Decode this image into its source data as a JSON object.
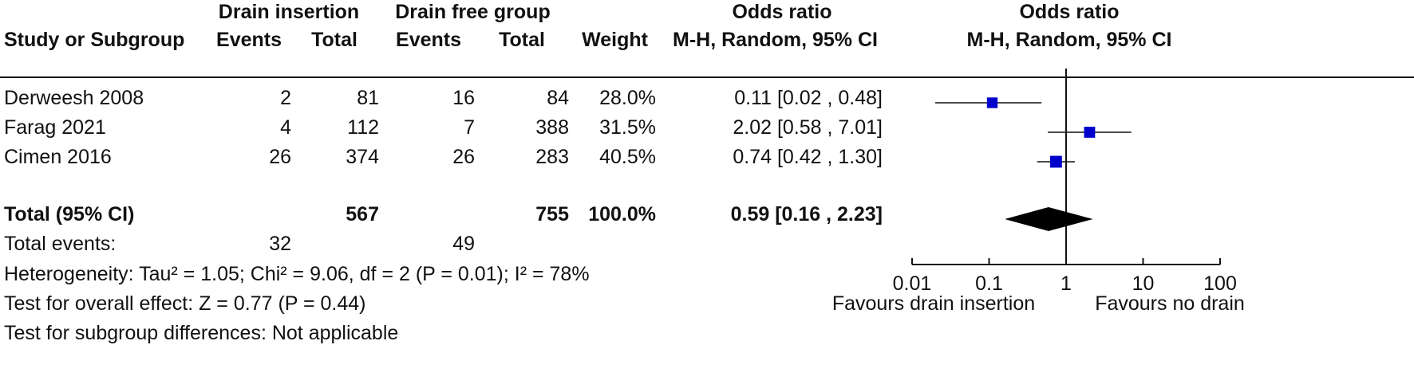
{
  "headers": {
    "group_exp": "Drain insertion",
    "group_ctl": "Drain free group",
    "or_top": "Odds ratio",
    "plot_top": "Odds ratio",
    "study": "Study or Subgroup",
    "events1": "Events",
    "total1": "Total",
    "events2": "Events",
    "total2": "Total",
    "weight": "Weight",
    "method": "M-H, Random, 95% CI",
    "plot_method": "M-H, Random, 95% CI"
  },
  "studies": [
    {
      "name": "Derweesh 2008",
      "events1": "2",
      "total1": "81",
      "events2": "16",
      "total2": "84",
      "weight": "28.0%",
      "ci_text": "0.11 [0.02 , 0.48]"
    },
    {
      "name": "Farag 2021",
      "events1": "4",
      "total1": "112",
      "events2": "7",
      "total2": "388",
      "weight": "31.5%",
      "ci_text": "2.02 [0.58 , 7.01]"
    },
    {
      "name": "Cimen 2016",
      "events1": "26",
      "total1": "374",
      "events2": "26",
      "total2": "283",
      "weight": "40.5%",
      "ci_text": "0.74 [0.42 , 1.30]"
    }
  ],
  "total": {
    "label": "Total (95% CI)",
    "total1": "567",
    "total2": "755",
    "weight": "100.0%",
    "ci_text": "0.59 [0.16 , 2.23]"
  },
  "total_events": {
    "label": "Total events:",
    "events1": "32",
    "events2": "49"
  },
  "footnotes": {
    "heterogeneity": "Heterogeneity: Tau² = 1.05; Chi² = 9.06, df = 2 (P = 0.01); I² = 78%",
    "overall": "Test for overall effect: Z = 0.77 (P = 0.44)",
    "subgroup": "Test for subgroup differences: Not applicable"
  },
  "chart_data": {
    "type": "forest",
    "x_scale": "log",
    "xlim": [
      0.01,
      100
    ],
    "ticks": [
      0.01,
      0.1,
      1,
      10,
      100
    ],
    "tick_labels": [
      "0.01",
      "0.1",
      "1",
      "10",
      "100"
    ],
    "favours_left": "Favours drain insertion",
    "favours_right": "Favours no drain",
    "studies": [
      {
        "name": "Derweesh 2008",
        "or": 0.11,
        "lower": 0.02,
        "upper": 0.48,
        "weight": 28.0
      },
      {
        "name": "Farag 2021",
        "or": 2.02,
        "lower": 0.58,
        "upper": 7.01,
        "weight": 31.5
      },
      {
        "name": "Cimen 2016",
        "or": 0.74,
        "lower": 0.42,
        "upper": 1.3,
        "weight": 40.5
      }
    ],
    "pooled": {
      "or": 0.59,
      "lower": 0.16,
      "upper": 2.23
    },
    "colors": {
      "marker": "#0000CC",
      "diamond": "#000000",
      "lines": "#111111"
    }
  }
}
